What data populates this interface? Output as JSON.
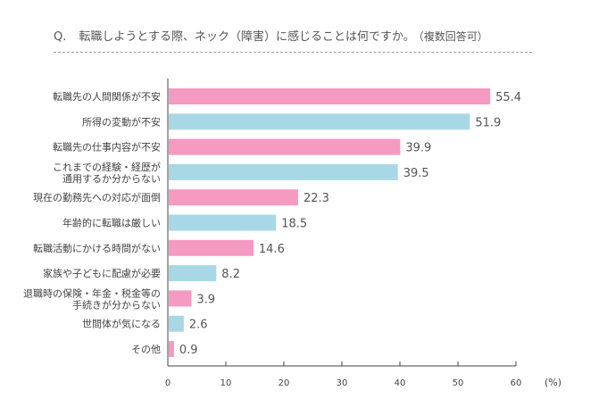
{
  "question": {
    "prefix": "Q.",
    "text": "転職しようとする際、ネック（障害）に感じることは何ですか。",
    "note": "（複数回答可）"
  },
  "colors": {
    "pink": "#f59ac1",
    "blue": "#a8d8e6",
    "axis": "#444444"
  },
  "chart_data": {
    "type": "bar",
    "orientation": "horizontal",
    "unit": "(%)",
    "xlim": [
      0,
      60
    ],
    "ticks": [
      0,
      10,
      20,
      30,
      40,
      50,
      60
    ],
    "grid": false,
    "legend": "none",
    "categories": [
      [
        "転職先の人間関係が不安"
      ],
      [
        "所得の変動が不安"
      ],
      [
        "転職先の仕事内容が不安"
      ],
      [
        "これまでの経験・経歴が",
        "通用するか分からない"
      ],
      [
        "現在の勤務先への対応が面倒"
      ],
      [
        "年齢的に転職は厳しい"
      ],
      [
        "転職活動にかける時間がない"
      ],
      [
        "家族や子どもに配慮が必要"
      ],
      [
        "退職時の保険・年金・税金等の",
        "手続きが分からない"
      ],
      [
        "世間体が気になる"
      ],
      [
        "その他"
      ]
    ],
    "values": [
      55.4,
      51.9,
      39.9,
      39.5,
      22.3,
      18.5,
      14.6,
      8.2,
      3.9,
      2.6,
      0.9
    ],
    "value_labels": [
      "55.4",
      "51.9",
      "39.9",
      "39.5",
      "22.3",
      "18.5",
      "14.6",
      "8.2",
      "3.9",
      "2.6",
      "0.9"
    ]
  }
}
